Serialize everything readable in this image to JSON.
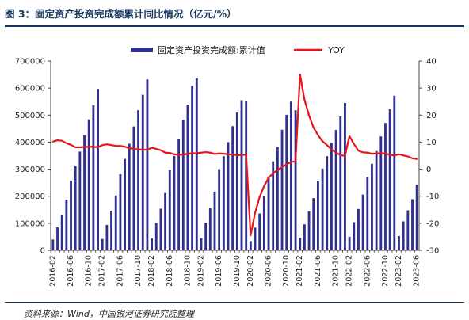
{
  "figure": {
    "title": "图 3：固定资产投资完成额累计同比情况（亿元/%）",
    "source": "资料来源：Wind，中国银河证券研究院整理"
  },
  "colors": {
    "bar": "#2e2f8e",
    "line": "#e8141b",
    "axis": "#444444",
    "title": "#17375e"
  },
  "chart_data": {
    "type": "bar",
    "title": "",
    "xlabel": "",
    "ylabel": "",
    "ylim": [
      0,
      700000
    ],
    "y2lim": [
      -30,
      40
    ],
    "yticks": [
      "0",
      "100000",
      "200000",
      "300000",
      "400000",
      "500000",
      "600000",
      "700000"
    ],
    "y2ticks": [
      "-30",
      "-20",
      "-10",
      "0",
      "10",
      "20",
      "30",
      "40"
    ],
    "xtick_labels": [
      "2016-02",
      "2016-06",
      "2016-10",
      "2017-02",
      "2017-06",
      "2017-10",
      "2018-02",
      "2018-06",
      "2018-10",
      "2019-02",
      "2019-06",
      "2019-10",
      "2020-02",
      "2020-06",
      "2020-10",
      "2021-02",
      "2021-06",
      "2021-10",
      "2022-02",
      "2022-06",
      "2022-10",
      "2023-02",
      "2023-06"
    ],
    "legend_position": "top",
    "categories": [
      "2016-02",
      "2016-03",
      "2016-04",
      "2016-05",
      "2016-06",
      "2016-07",
      "2016-08",
      "2016-09",
      "2016-10",
      "2016-11",
      "2016-12",
      "2017-02",
      "2017-03",
      "2017-04",
      "2017-05",
      "2017-06",
      "2017-07",
      "2017-08",
      "2017-09",
      "2017-10",
      "2017-11",
      "2017-12",
      "2018-02",
      "2018-03",
      "2018-04",
      "2018-05",
      "2018-06",
      "2018-07",
      "2018-08",
      "2018-09",
      "2018-10",
      "2018-11",
      "2018-12",
      "2019-02",
      "2019-03",
      "2019-04",
      "2019-05",
      "2019-06",
      "2019-07",
      "2019-08",
      "2019-09",
      "2019-10",
      "2019-11",
      "2019-12",
      "2020-02",
      "2020-03",
      "2020-04",
      "2020-05",
      "2020-06",
      "2020-07",
      "2020-08",
      "2020-09",
      "2020-10",
      "2020-11",
      "2020-12",
      "2021-02",
      "2021-03",
      "2021-04",
      "2021-05",
      "2021-06",
      "2021-07",
      "2021-08",
      "2021-09",
      "2021-10",
      "2021-11",
      "2021-12",
      "2022-02",
      "2022-03",
      "2022-04",
      "2022-05",
      "2022-06",
      "2022-07",
      "2022-08",
      "2022-09",
      "2022-10",
      "2022-11",
      "2022-12",
      "2023-02",
      "2023-03",
      "2023-04",
      "2023-05",
      "2023-06"
    ],
    "series": [
      {
        "name": "固定资产投资完成额:累计值",
        "type": "bar",
        "axis": "left",
        "values": [
          40000,
          85000,
          130000,
          187000,
          258000,
          311000,
          365000,
          426000,
          484000,
          537000,
          597000,
          42000,
          94000,
          146000,
          203000,
          281000,
          338000,
          394000,
          458000,
          518000,
          575000,
          632000,
          44000,
          101000,
          154000,
          212000,
          298000,
          349000,
          410000,
          482000,
          539000,
          608000,
          636000,
          45000,
          102000,
          156000,
          217000,
          300000,
          348000,
          400000,
          459000,
          510000,
          555000,
          551000,
          34000,
          84000,
          136000,
          200000,
          272000,
          329000,
          381000,
          446000,
          501000,
          550000,
          518000,
          46000,
          96000,
          144000,
          193000,
          255000,
          302000,
          348000,
          397000,
          445000,
          495000,
          545000,
          50000,
          104000,
          153000,
          206000,
          271000,
          320000,
          367000,
          421000,
          471000,
          521000,
          572000,
          53000,
          107000,
          148000,
          189000,
          243000
        ]
      },
      {
        "name": "YOY",
        "type": "line",
        "axis": "right",
        "values": [
          10.2,
          10.7,
          10.5,
          9.6,
          9.0,
          8.1,
          8.1,
          8.2,
          8.3,
          8.3,
          8.1,
          8.9,
          9.2,
          8.9,
          8.6,
          8.6,
          8.3,
          7.8,
          7.5,
          7.3,
          7.2,
          7.2,
          7.9,
          7.5,
          7.0,
          6.1,
          6.0,
          5.5,
          5.3,
          5.4,
          5.7,
          5.9,
          5.9,
          6.1,
          6.3,
          6.1,
          5.6,
          5.8,
          5.7,
          5.5,
          5.4,
          5.2,
          5.2,
          5.4,
          -24.5,
          -16.1,
          -10.3,
          -6.3,
          -3.1,
          -1.6,
          -0.3,
          0.8,
          1.8,
          2.6,
          2.9,
          35.0,
          25.6,
          19.9,
          15.4,
          12.6,
          10.3,
          8.9,
          7.3,
          6.1,
          5.2,
          4.9,
          12.2,
          9.3,
          6.8,
          6.2,
          6.1,
          5.7,
          5.8,
          5.9,
          5.8,
          5.3,
          5.1,
          5.5,
          5.1,
          4.7,
          4.0,
          3.8
        ]
      }
    ]
  }
}
